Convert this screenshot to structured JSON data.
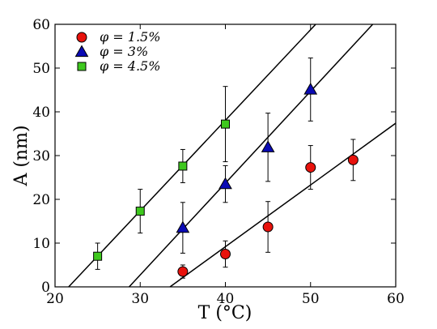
{
  "chart_data": {
    "type": "scatter",
    "xlabel": "T (°C)",
    "ylabel": "A (nm)",
    "xlim": [
      20,
      60
    ],
    "ylim": [
      0,
      60
    ],
    "xticks": [
      20,
      30,
      40,
      50,
      60
    ],
    "yticks": [
      0,
      10,
      20,
      30,
      40,
      50,
      60
    ],
    "grid": false,
    "legend_position": "top-left",
    "series": [
      {
        "name": "φ = 1.5%",
        "marker": "circle",
        "color": "#e8120c",
        "points": [
          {
            "x": 35,
            "y": 3.5,
            "err": 1.5
          },
          {
            "x": 40,
            "y": 7.5,
            "err": 3.0
          },
          {
            "x": 45,
            "y": 13.7,
            "err": 5.8
          },
          {
            "x": 50,
            "y": 27.3,
            "err": 5.0
          },
          {
            "x": 55,
            "y": 29.0,
            "err": 4.7
          }
        ],
        "fit": {
          "x": [
            33.5,
            60
          ],
          "y": [
            0,
            37.4
          ]
        }
      },
      {
        "name": "φ = 3%",
        "marker": "triangle",
        "color": "#0a0ab4",
        "points": [
          {
            "x": 35,
            "y": 13.5,
            "err": 5.8
          },
          {
            "x": 40,
            "y": 23.5,
            "err": 4.2
          },
          {
            "x": 45,
            "y": 31.9,
            "err": 7.8
          },
          {
            "x": 50,
            "y": 45.1,
            "err": 7.2
          }
        ],
        "fit": {
          "x": [
            28.7,
            57.3
          ],
          "y": [
            0,
            60
          ]
        }
      },
      {
        "name": "φ = 4.5%",
        "marker": "square",
        "color": "#3ec81e",
        "points": [
          {
            "x": 25,
            "y": 7.0,
            "err": 3.0
          },
          {
            "x": 30,
            "y": 17.3,
            "err": 5.0
          },
          {
            "x": 35,
            "y": 27.6,
            "err": 3.8
          },
          {
            "x": 40,
            "y": 37.2,
            "err": 8.6
          }
        ],
        "fit": {
          "x": [
            21.6,
            50.6
          ],
          "y": [
            0,
            60
          ]
        }
      }
    ]
  }
}
